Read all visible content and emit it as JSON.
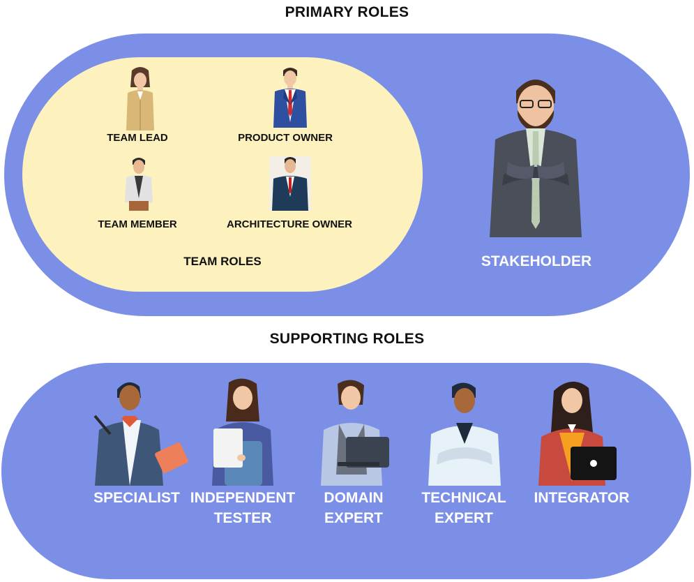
{
  "primary": {
    "title": "PRIMARY ROLES",
    "team_group_label": "TEAM ROLES",
    "team_roles": [
      {
        "label": "TEAM LEAD",
        "icon": "team-lead-icon"
      },
      {
        "label": "PRODUCT OWNER",
        "icon": "product-owner-icon"
      },
      {
        "label": "TEAM MEMBER",
        "icon": "team-member-icon"
      },
      {
        "label": "ARCHITECTURE OWNER",
        "icon": "architecture-owner-icon"
      }
    ],
    "stakeholder": {
      "label": "STAKEHOLDER",
      "icon": "stakeholder-icon"
    }
  },
  "supporting": {
    "title": "SUPPORTING ROLES",
    "roles": [
      {
        "line1": "SPECIALIST",
        "line2": "",
        "icon": "specialist-icon"
      },
      {
        "line1": "INDEPENDENT",
        "line2": "TESTER",
        "icon": "independent-tester-icon"
      },
      {
        "line1": "DOMAIN",
        "line2": "EXPERT",
        "icon": "domain-expert-icon"
      },
      {
        "line1": "TECHNICAL",
        "line2": "EXPERT",
        "icon": "technical-expert-icon"
      },
      {
        "line1": "INTEGRATOR",
        "line2": "",
        "icon": "integrator-icon"
      }
    ]
  },
  "colors": {
    "outer_pill": "#7b8fe6",
    "team_pill": "#fdf1bd",
    "label_light": "#ffffff",
    "label_dark": "#111111"
  }
}
